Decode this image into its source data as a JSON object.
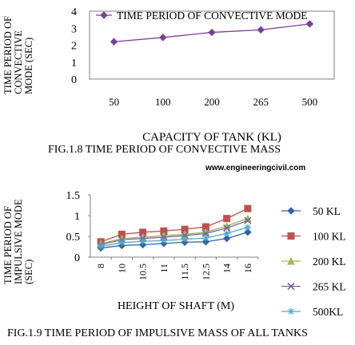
{
  "figure1": {
    "caption": "FIG.1.8 TIME PERIOD OF CONVECTIVE   MASS"
  },
  "watermark": "www.engineeringcivil.com",
  "figure2": {
    "caption": "FIG.1.9 TIME PERIOD OF IMPULSIVE MASS OF ALL TANKS"
  },
  "chart_data": [
    {
      "type": "line",
      "categories": [
        "50",
        "100",
        "200",
        "265",
        "500"
      ],
      "series": [
        {
          "name": "TIME PERIOD OF CONVECTIVE MODE",
          "values": [
            2.2,
            2.45,
            2.75,
            2.9,
            3.25
          ],
          "color": "#7b3f98",
          "marker": "diamond"
        }
      ],
      "ylabel_lines": [
        "TIME PERIOD OF",
        "CONVECTIVE",
        "MODE (SEC)"
      ],
      "xlabel": "CAPACITY OF TANK (KL)",
      "ylim": [
        0,
        4
      ],
      "yticks": [
        0,
        1,
        2,
        3,
        4
      ],
      "grid": false,
      "legend": "top-inside"
    },
    {
      "type": "line",
      "categories": [
        "8",
        "10",
        "10.5",
        "11",
        "11.5",
        "12.5",
        "14",
        "16"
      ],
      "series": [
        {
          "name": "50 KL",
          "values": [
            0.22,
            0.28,
            0.3,
            0.33,
            0.36,
            0.37,
            0.45,
            0.6
          ],
          "color": "#3465a4",
          "marker": "diamond"
        },
        {
          "name": "100 KL",
          "values": [
            0.37,
            0.55,
            0.6,
            0.63,
            0.67,
            0.73,
            0.93,
            1.17
          ],
          "color": "#c0504d",
          "marker": "square"
        },
        {
          "name": "200 KL",
          "values": [
            0.32,
            0.45,
            0.48,
            0.52,
            0.55,
            0.6,
            0.75,
            0.93
          ],
          "color": "#9bbb59",
          "marker": "triangle"
        },
        {
          "name": "265 KL",
          "values": [
            0.3,
            0.42,
            0.45,
            0.48,
            0.52,
            0.57,
            0.7,
            0.88
          ],
          "color": "#8064a2",
          "marker": "x"
        },
        {
          "name": "500KL",
          "values": [
            0.26,
            0.35,
            0.38,
            0.4,
            0.43,
            0.46,
            0.57,
            0.72
          ],
          "color": "#4bacc6",
          "marker": "star"
        }
      ],
      "ylabel_lines": [
        "TIME PERIOD OF",
        "IMPULSIVE MODE",
        "(SEC)"
      ],
      "xlabel": "HEIGHT OF SHAFT (M)",
      "ylim": [
        0,
        1.5
      ],
      "yticks": [
        0,
        0.5,
        1,
        1.5
      ],
      "grid": false,
      "legend": "right"
    }
  ]
}
